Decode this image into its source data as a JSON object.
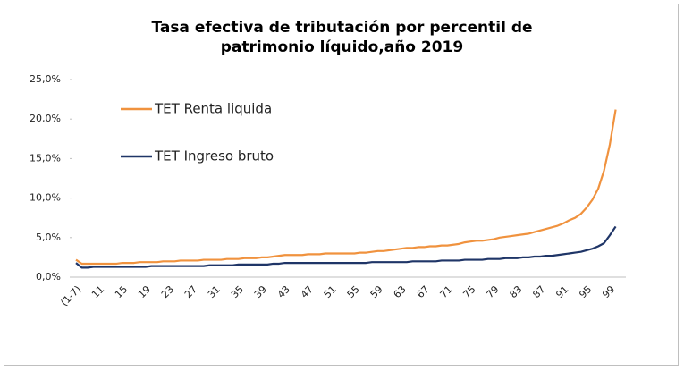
{
  "chart_data": {
    "type": "line",
    "title": "Tasa efectiva de tributación por percentil de patrimonio líquido,año 2019",
    "categories": [
      "(1-7)",
      null,
      null,
      null,
      "11",
      null,
      null,
      null,
      "15",
      null,
      null,
      null,
      "19",
      null,
      null,
      null,
      "23",
      null,
      null,
      null,
      "27",
      null,
      null,
      null,
      "31",
      null,
      null,
      null,
      "35",
      null,
      null,
      null,
      "39",
      null,
      null,
      null,
      "43",
      null,
      null,
      null,
      "47",
      null,
      null,
      null,
      "51",
      null,
      null,
      null,
      "55",
      null,
      null,
      null,
      "59",
      null,
      null,
      null,
      "63",
      null,
      null,
      null,
      "67",
      null,
      null,
      null,
      "71",
      null,
      null,
      null,
      "75",
      null,
      null,
      null,
      "79",
      null,
      null,
      null,
      "83",
      null,
      null,
      null,
      "87",
      null,
      null,
      null,
      "91",
      null,
      null,
      null,
      "95",
      null,
      null,
      null,
      "99",
      null
    ],
    "series": [
      {
        "name": "TET Renta liquida",
        "color": "#f0923e",
        "values": [
          2.2,
          1.7,
          1.7,
          1.7,
          1.7,
          1.7,
          1.7,
          1.7,
          1.8,
          1.8,
          1.8,
          1.9,
          1.9,
          1.9,
          1.9,
          2.0,
          2.0,
          2.0,
          2.1,
          2.1,
          2.1,
          2.1,
          2.2,
          2.2,
          2.2,
          2.2,
          2.3,
          2.3,
          2.3,
          2.4,
          2.4,
          2.4,
          2.5,
          2.5,
          2.6,
          2.7,
          2.8,
          2.8,
          2.8,
          2.8,
          2.9,
          2.9,
          2.9,
          3.0,
          3.0,
          3.0,
          3.0,
          3.0,
          3.0,
          3.1,
          3.1,
          3.2,
          3.3,
          3.3,
          3.4,
          3.5,
          3.6,
          3.7,
          3.7,
          3.8,
          3.8,
          3.9,
          3.9,
          4.0,
          4.0,
          4.1,
          4.2,
          4.4,
          4.5,
          4.6,
          4.6,
          4.7,
          4.8,
          5.0,
          5.1,
          5.2,
          5.3,
          5.4,
          5.5,
          5.7,
          5.9,
          6.1,
          6.3,
          6.5,
          6.8,
          7.2,
          7.5,
          8.0,
          8.8,
          9.8,
          11.2,
          13.5,
          16.8,
          21.2
        ]
      },
      {
        "name": "TET Ingreso bruto",
        "color": "#1f3567",
        "values": [
          1.8,
          1.2,
          1.2,
          1.3,
          1.3,
          1.3,
          1.3,
          1.3,
          1.3,
          1.3,
          1.3,
          1.3,
          1.3,
          1.4,
          1.4,
          1.4,
          1.4,
          1.4,
          1.4,
          1.4,
          1.4,
          1.4,
          1.4,
          1.5,
          1.5,
          1.5,
          1.5,
          1.5,
          1.6,
          1.6,
          1.6,
          1.6,
          1.6,
          1.6,
          1.7,
          1.7,
          1.8,
          1.8,
          1.8,
          1.8,
          1.8,
          1.8,
          1.8,
          1.8,
          1.8,
          1.8,
          1.8,
          1.8,
          1.8,
          1.8,
          1.8,
          1.9,
          1.9,
          1.9,
          1.9,
          1.9,
          1.9,
          1.9,
          2.0,
          2.0,
          2.0,
          2.0,
          2.0,
          2.1,
          2.1,
          2.1,
          2.1,
          2.2,
          2.2,
          2.2,
          2.2,
          2.3,
          2.3,
          2.3,
          2.4,
          2.4,
          2.4,
          2.5,
          2.5,
          2.6,
          2.6,
          2.7,
          2.7,
          2.8,
          2.9,
          3.0,
          3.1,
          3.2,
          3.4,
          3.6,
          3.9,
          4.3,
          5.3,
          6.4
        ]
      }
    ],
    "ylim": [
      0,
      25
    ],
    "yticks": [
      {
        "value": 0,
        "label": "0,0%"
      },
      {
        "value": 5,
        "label": "5,0%"
      },
      {
        "value": 10,
        "label": "10,0%"
      },
      {
        "value": 15,
        "label": "15,0%"
      },
      {
        "value": 20,
        "label": "20,0%"
      },
      {
        "value": 25,
        "label": "25,0%"
      }
    ],
    "grid": false,
    "legend": "upper-left"
  }
}
